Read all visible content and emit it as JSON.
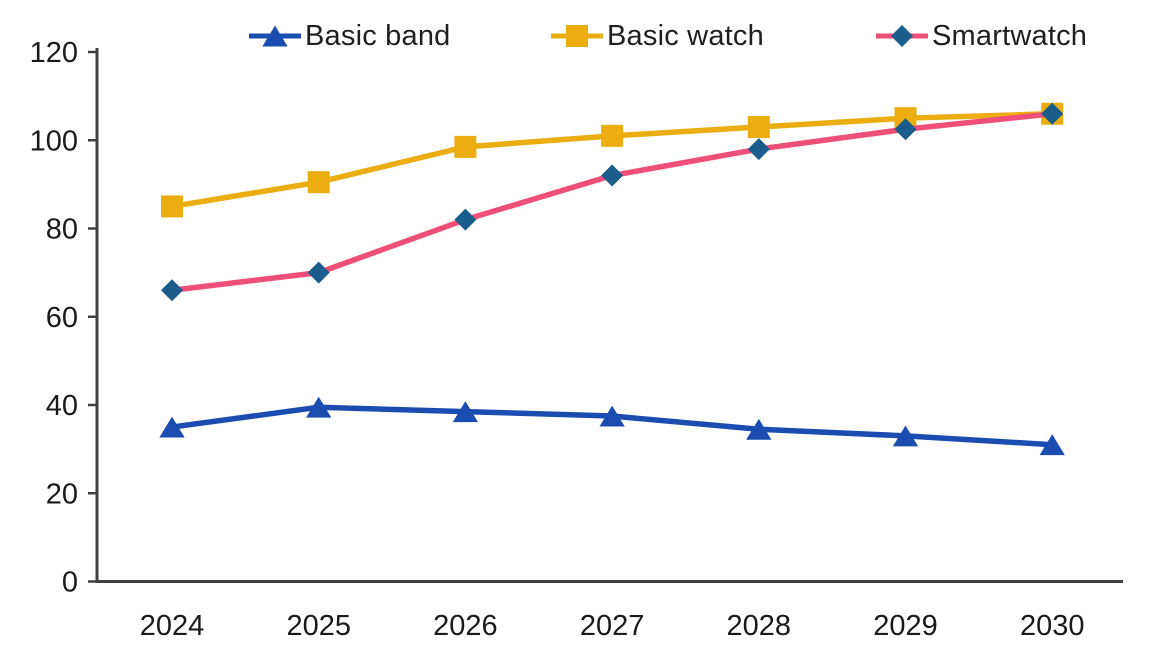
{
  "chart_data": {
    "type": "line",
    "title": "",
    "xlabel": "",
    "ylabel": "",
    "x": [
      "2024",
      "2025",
      "2026",
      "2027",
      "2028",
      "2029",
      "2030"
    ],
    "series": [
      {
        "name": "Basic band",
        "marker": "triangle",
        "color": "#1B4DB1",
        "marker_color": "#1B4DB1",
        "values": [
          35,
          39.5,
          38.5,
          37.5,
          34.5,
          33,
          31
        ]
      },
      {
        "name": "Basic watch",
        "marker": "square",
        "color": "#EBAD10",
        "marker_color": "#EBAD10",
        "values": [
          85,
          90.5,
          98.5,
          101,
          103,
          105,
          106
        ]
      },
      {
        "name": "Smartwatch",
        "marker": "diamond",
        "color": "#EE4F78",
        "marker_color": "#1A5C8C",
        "values": [
          66,
          70,
          82,
          92,
          98,
          102.5,
          106
        ]
      }
    ],
    "ylim": [
      0,
      120
    ],
    "yticks": [
      0,
      20,
      40,
      60,
      80,
      100,
      120
    ],
    "grid": false,
    "legend_position": "top",
    "axis_color": "#3F3F3F",
    "text_color": "#1A1A1A",
    "background": "#FFFFFF"
  }
}
